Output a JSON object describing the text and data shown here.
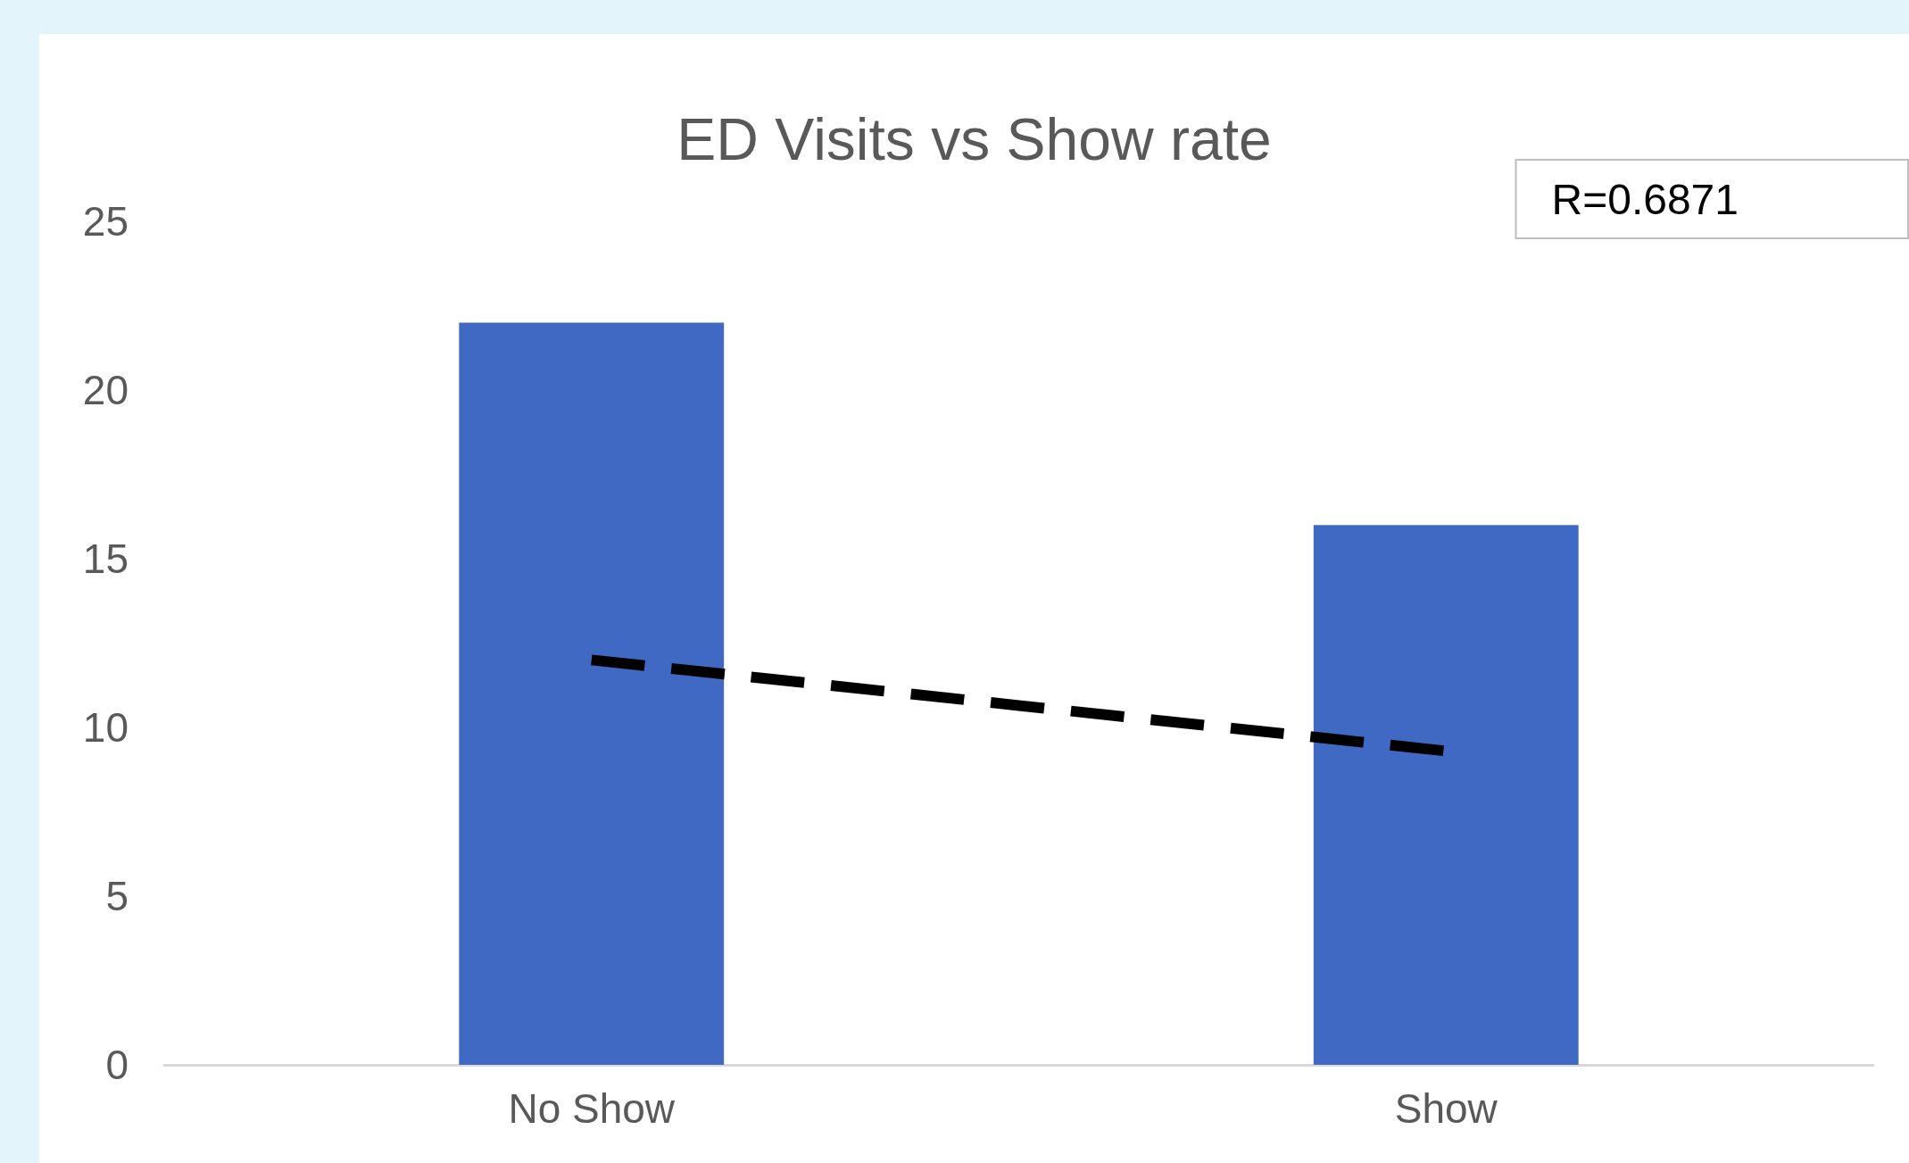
{
  "chart_data": {
    "type": "bar",
    "title": "ED Visits vs Show rate",
    "categories": [
      "No Show",
      "Show"
    ],
    "series": [
      {
        "color": "#4069c4",
        "values": [
          22,
          16
        ]
      },
      {
        "type": "line",
        "color": "#000000",
        "values": [
          12,
          9.3
        ],
        "line_style": "dashed"
      }
    ],
    "ylim": [
      0,
      25
    ],
    "yticks": [
      0,
      5,
      10,
      15,
      20,
      25
    ],
    "grid": false,
    "annotations": [
      "R=0.6871"
    ]
  }
}
